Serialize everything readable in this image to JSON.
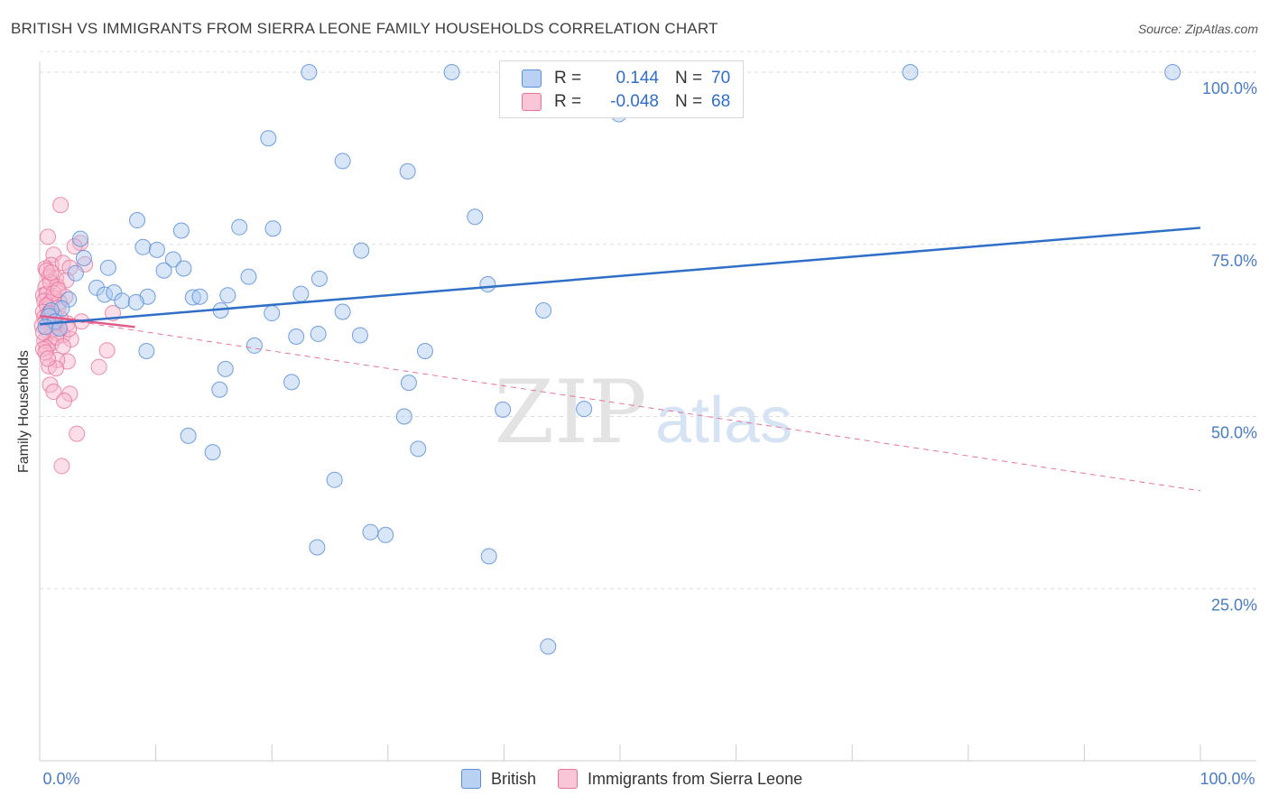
{
  "header": {
    "title": "BRITISH VS IMMIGRANTS FROM SIERRA LEONE FAMILY HOUSEHOLDS CORRELATION CHART",
    "source": "Source: ZipAtlas.com"
  },
  "watermark": {
    "zip": "ZIP",
    "atlas": "atlas"
  },
  "legend": {
    "rows": [
      {
        "r_label": "R =",
        "r_value": "0.144",
        "n_label": "N =",
        "n_value": "70",
        "color": "#5b8fd9"
      },
      {
        "r_label": "R =",
        "r_value": "-0.048",
        "n_label": "N =",
        "n_value": "68",
        "color": "#e8739a"
      }
    ]
  },
  "bottom_legend": {
    "british": "British",
    "sierra_leone": "Immigrants from Sierra Leone"
  },
  "chart_data": {
    "type": "scatter",
    "title": "BRITISH VS IMMIGRANTS FROM SIERRA LEONE FAMILY HOUSEHOLDS CORRELATION CHART",
    "xlabel": "",
    "ylabel": "Family Households",
    "xlim": [
      0,
      100
    ],
    "ylim": [
      0,
      103
    ],
    "x_tick_labels": [
      "0.0%",
      "100.0%"
    ],
    "y_ticks": [
      25,
      50,
      75,
      100
    ],
    "y_tick_labels": [
      "25.0%",
      "50.0%",
      "75.0%",
      "100.0%"
    ],
    "grid": "horizontal dashed",
    "legend_position": "top-center",
    "series": [
      {
        "name": "British",
        "color": "#5b8fd9",
        "stats": {
          "r": 0.144,
          "n": 70
        },
        "trend": {
          "x": [
            0,
            100
          ],
          "y": [
            63.4,
            77.4
          ],
          "style": "solid"
        },
        "points": [
          [
            23.2,
            100
          ],
          [
            35.5,
            100
          ],
          [
            48.0,
            100
          ],
          [
            75.0,
            100
          ],
          [
            97.6,
            100
          ],
          [
            49.9,
            93.9
          ],
          [
            19.7,
            90.4
          ],
          [
            26.1,
            87.1
          ],
          [
            31.7,
            85.6
          ],
          [
            37.5,
            79.0
          ],
          [
            8.4,
            78.5
          ],
          [
            17.2,
            77.5
          ],
          [
            20.1,
            77.3
          ],
          [
            12.2,
            77.0
          ],
          [
            3.5,
            75.8
          ],
          [
            8.9,
            74.6
          ],
          [
            10.1,
            74.2
          ],
          [
            27.7,
            74.1
          ],
          [
            11.5,
            72.8
          ],
          [
            3.8,
            73.0
          ],
          [
            5.9,
            71.6
          ],
          [
            10.7,
            71.2
          ],
          [
            12.4,
            71.5
          ],
          [
            18.0,
            70.3
          ],
          [
            3.1,
            70.8
          ],
          [
            24.1,
            70.0
          ],
          [
            38.6,
            69.2
          ],
          [
            4.9,
            68.7
          ],
          [
            5.6,
            67.7
          ],
          [
            6.4,
            68.0
          ],
          [
            22.5,
            67.8
          ],
          [
            9.3,
            67.4
          ],
          [
            13.2,
            67.3
          ],
          [
            2.5,
            67.0
          ],
          [
            7.1,
            66.8
          ],
          [
            13.8,
            67.4
          ],
          [
            16.2,
            67.6
          ],
          [
            8.3,
            66.6
          ],
          [
            1.9,
            65.7
          ],
          [
            15.6,
            65.4
          ],
          [
            26.1,
            65.2
          ],
          [
            43.4,
            65.4
          ],
          [
            20.0,
            65.0
          ],
          [
            1.0,
            65.4
          ],
          [
            0.8,
            64.6
          ],
          [
            1.3,
            63.8
          ],
          [
            0.5,
            63.0
          ],
          [
            1.7,
            62.8
          ],
          [
            22.1,
            61.6
          ],
          [
            24.0,
            62.0
          ],
          [
            27.6,
            61.8
          ],
          [
            18.5,
            60.3
          ],
          [
            33.2,
            59.5
          ],
          [
            9.2,
            59.5
          ],
          [
            16.0,
            56.9
          ],
          [
            21.7,
            55.0
          ],
          [
            31.8,
            54.9
          ],
          [
            15.5,
            53.9
          ],
          [
            39.9,
            51.0
          ],
          [
            46.9,
            51.1
          ],
          [
            31.4,
            50.0
          ],
          [
            12.8,
            47.2
          ],
          [
            32.6,
            45.3
          ],
          [
            14.9,
            44.8
          ],
          [
            25.4,
            40.8
          ],
          [
            28.5,
            33.2
          ],
          [
            23.9,
            31.0
          ],
          [
            29.8,
            32.8
          ],
          [
            38.7,
            29.7
          ],
          [
            43.8,
            16.6
          ]
        ]
      },
      {
        "name": "Immigrants from Sierra Leone",
        "color": "#e8739a",
        "stats": {
          "r": -0.048,
          "n": 68
        },
        "trend_solid": {
          "x": [
            0,
            8.2
          ],
          "y": [
            64.6,
            63.0
          ]
        },
        "trend_dashed": {
          "x": [
            0,
            100
          ],
          "y": [
            64.6,
            39.2
          ]
        },
        "points": [
          [
            1.8,
            80.7
          ],
          [
            0.7,
            76.1
          ],
          [
            3.5,
            75.2
          ],
          [
            1.2,
            73.5
          ],
          [
            1.0,
            72.0
          ],
          [
            0.5,
            71.5
          ],
          [
            2.0,
            72.3
          ],
          [
            2.6,
            71.6
          ],
          [
            3.9,
            72.1
          ],
          [
            0.8,
            70.3
          ],
          [
            1.4,
            70.1
          ],
          [
            0.5,
            68.8
          ],
          [
            1.5,
            68.9
          ],
          [
            0.3,
            67.6
          ],
          [
            0.6,
            67.8
          ],
          [
            1.2,
            67.2
          ],
          [
            2.2,
            67.4
          ],
          [
            0.4,
            66.8
          ],
          [
            0.9,
            66.6
          ],
          [
            0.6,
            66.1
          ],
          [
            1.6,
            65.8
          ],
          [
            0.3,
            65.2
          ],
          [
            0.8,
            65.0
          ],
          [
            6.3,
            65.0
          ],
          [
            0.4,
            64.4
          ],
          [
            1.3,
            64.5
          ],
          [
            0.5,
            63.8
          ],
          [
            2.4,
            63.5
          ],
          [
            3.6,
            63.8
          ],
          [
            1.0,
            63.0
          ],
          [
            0.7,
            62.4
          ],
          [
            1.5,
            62.1
          ],
          [
            2.0,
            61.8
          ],
          [
            0.4,
            61.0
          ],
          [
            1.0,
            60.6
          ],
          [
            2.7,
            61.2
          ],
          [
            0.6,
            60.0
          ],
          [
            5.8,
            59.6
          ],
          [
            0.3,
            59.8
          ],
          [
            2.4,
            58.0
          ],
          [
            1.5,
            58.2
          ],
          [
            0.8,
            57.3
          ],
          [
            1.4,
            57.0
          ],
          [
            5.1,
            57.2
          ],
          [
            0.9,
            54.6
          ],
          [
            1.2,
            53.6
          ],
          [
            2.6,
            53.3
          ],
          [
            2.1,
            52.3
          ],
          [
            3.2,
            47.5
          ],
          [
            1.9,
            42.8
          ],
          [
            1.1,
            62.6
          ],
          [
            0.2,
            63.2
          ],
          [
            1.7,
            66.6
          ],
          [
            0.9,
            69.5
          ],
          [
            1.4,
            61.5
          ],
          [
            0.5,
            59.3
          ],
          [
            3.0,
            74.7
          ],
          [
            2.3,
            69.8
          ],
          [
            0.6,
            71.2
          ],
          [
            1.8,
            64.2
          ],
          [
            0.3,
            62.2
          ],
          [
            2.0,
            60.2
          ],
          [
            0.7,
            58.4
          ],
          [
            1.2,
            67.9
          ],
          [
            0.8,
            64.9
          ],
          [
            2.5,
            62.7
          ],
          [
            1.0,
            70.9
          ],
          [
            1.6,
            68.4
          ]
        ]
      }
    ]
  }
}
